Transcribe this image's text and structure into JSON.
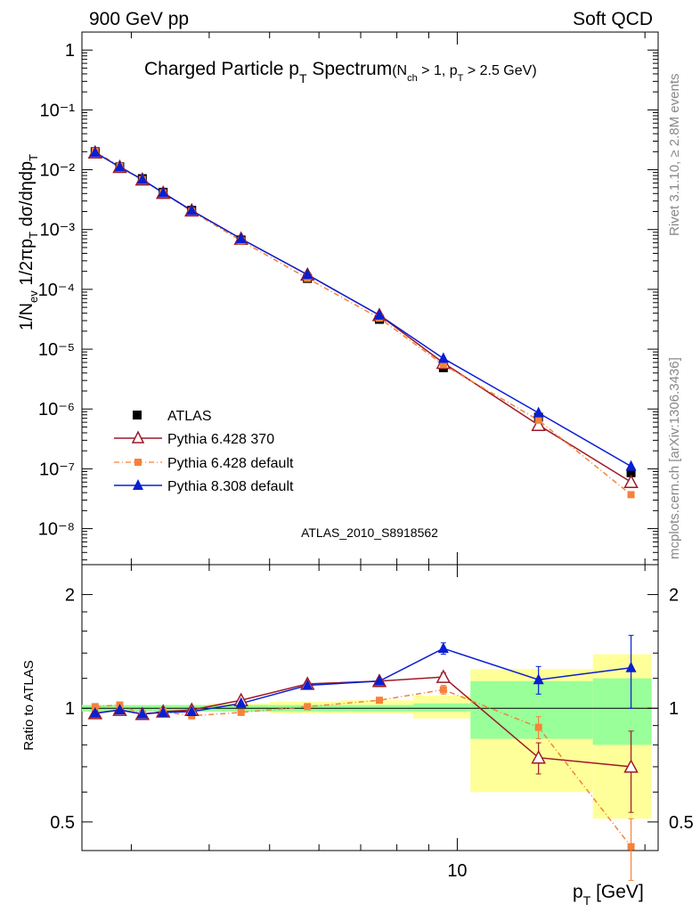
{
  "header": {
    "left": "900 GeV pp",
    "right": "Soft QCD"
  },
  "side": {
    "rivet": "Rivet 3.1.10, ≥ 2.8M events",
    "mcplots": "mcplots.cern.ch [arXiv:1306.3436]"
  },
  "title": {
    "main_a": "Charged Particle p",
    "main_sub": "T",
    "main_b": " Spectrum",
    "cuts_open": "(N",
    "cuts_sub1": "ch",
    "cuts_mid": " > 1, p",
    "cuts_sub2": "T",
    "cuts_close": " > 2.5 GeV)"
  },
  "watermark": "ATLAS_2010_S8918562",
  "axes": {
    "ylabel_top": "1/N_ev 1/2πp_T dσ/dηdp_T",
    "ylabel_bottom": "Ratio to ATLAS",
    "xlabel": "p_T  [GeV]",
    "xtick": "10",
    "top_ticks": [
      "1",
      "10⁻¹",
      "10⁻²",
      "10⁻³",
      "10⁻⁴",
      "10⁻⁵",
      "10⁻⁶",
      "10⁻⁷",
      "10⁻⁸"
    ],
    "ratio_ticks": [
      "2",
      "1",
      "0.5"
    ]
  },
  "legend": [
    {
      "name": "ATLAS",
      "color": "#000000",
      "marker": "square-filled"
    },
    {
      "name": "Pythia 6.428 370",
      "color": "#9c1a27",
      "marker": "triangle-open"
    },
    {
      "name": "Pythia 6.428 default",
      "color": "#f5823a",
      "marker": "square-small"
    },
    {
      "name": "Pythia 8.308 default",
      "color": "#0a1ed2",
      "marker": "triangle-filled"
    }
  ],
  "chart_data": {
    "type": "scatter",
    "xlabel": "p_T [GeV]",
    "ylabel": "1/N_ev 1/2πp_T dσ/dηdp_T",
    "xscale": "log",
    "yscale": "log",
    "xlim": [
      2.5,
      21
    ],
    "ylim": [
      2.5e-09,
      2.0
    ],
    "ratio_ylim": [
      0.42,
      2.4
    ],
    "x": [
      2.625,
      2.875,
      3.125,
      3.375,
      3.75,
      4.5,
      5.75,
      7.5,
      9.5,
      13.5,
      19.0
    ],
    "ref_band": {
      "edges": [
        2.5,
        2.75,
        3.0,
        3.25,
        3.5,
        4.0,
        5.0,
        6.5,
        8.5,
        10.5,
        16.5,
        20.5
      ],
      "stat_lo": [
        0.98,
        0.98,
        0.98,
        0.98,
        0.98,
        0.98,
        0.98,
        0.98,
        0.98,
        0.83,
        0.8
      ],
      "stat_hi": [
        1.02,
        1.02,
        1.02,
        1.02,
        1.02,
        1.02,
        1.02,
        1.02,
        1.03,
        1.18,
        1.2
      ],
      "tot_lo": [
        0.98,
        0.98,
        0.98,
        0.98,
        0.98,
        0.98,
        0.97,
        0.97,
        0.94,
        0.6,
        0.51
      ],
      "tot_hi": [
        1.02,
        1.02,
        1.02,
        1.02,
        1.02,
        1.03,
        1.04,
        1.05,
        1.08,
        1.27,
        1.39
      ]
    },
    "series": [
      {
        "name": "ATLAS",
        "values": [
          0.02,
          0.0112,
          0.0071,
          0.0042,
          0.0021,
          0.00067,
          0.000152,
          3.15e-05,
          4.9e-06,
          7.3e-07,
          8.6e-08
        ]
      },
      {
        "name": "Pythia 6.428 370",
        "values": [
          0.0194,
          0.0111,
          0.00685,
          0.0041,
          0.00208,
          0.0007,
          0.000176,
          3.7e-05,
          5.9e-06,
          5.4e-07,
          6e-08
        ],
        "ratio": [
          0.97,
          0.99,
          0.965,
          0.98,
          0.99,
          1.05,
          1.16,
          1.18,
          1.21,
          0.74,
          0.7
        ],
        "ratio_err": [
          0.01,
          0.01,
          0.01,
          0.01,
          0.01,
          0.01,
          0.01,
          0.01,
          0.03,
          0.07,
          0.17
        ]
      },
      {
        "name": "Pythia 6.428 default",
        "values": [
          0.0202,
          0.0114,
          0.00685,
          0.0041,
          0.00202,
          0.00065,
          0.000153,
          3.3e-05,
          5.5e-06,
          6.5e-07,
          3.7e-08
        ],
        "ratio": [
          1.01,
          1.02,
          0.965,
          0.98,
          0.955,
          0.975,
          1.01,
          1.05,
          1.12,
          0.89,
          0.43
        ],
        "ratio_err": [
          0.01,
          0.01,
          0.01,
          0.01,
          0.01,
          0.01,
          0.01,
          0.01,
          0.03,
          0.06,
          0.08
        ]
      },
      {
        "name": "Pythia 8.308 default",
        "values": [
          0.0194,
          0.0111,
          0.00685,
          0.0041,
          0.00208,
          0.0007,
          0.000176,
          3.7e-05,
          7e-06,
          8.6e-07,
          1.1e-07
        ],
        "ratio": [
          0.97,
          0.99,
          0.965,
          0.975,
          0.98,
          1.03,
          1.15,
          1.18,
          1.44,
          1.19,
          1.28
        ],
        "ratio_err": [
          0.01,
          0.01,
          0.01,
          0.01,
          0.01,
          0.01,
          0.01,
          0.01,
          0.05,
          0.1,
          0.28
        ]
      }
    ]
  }
}
